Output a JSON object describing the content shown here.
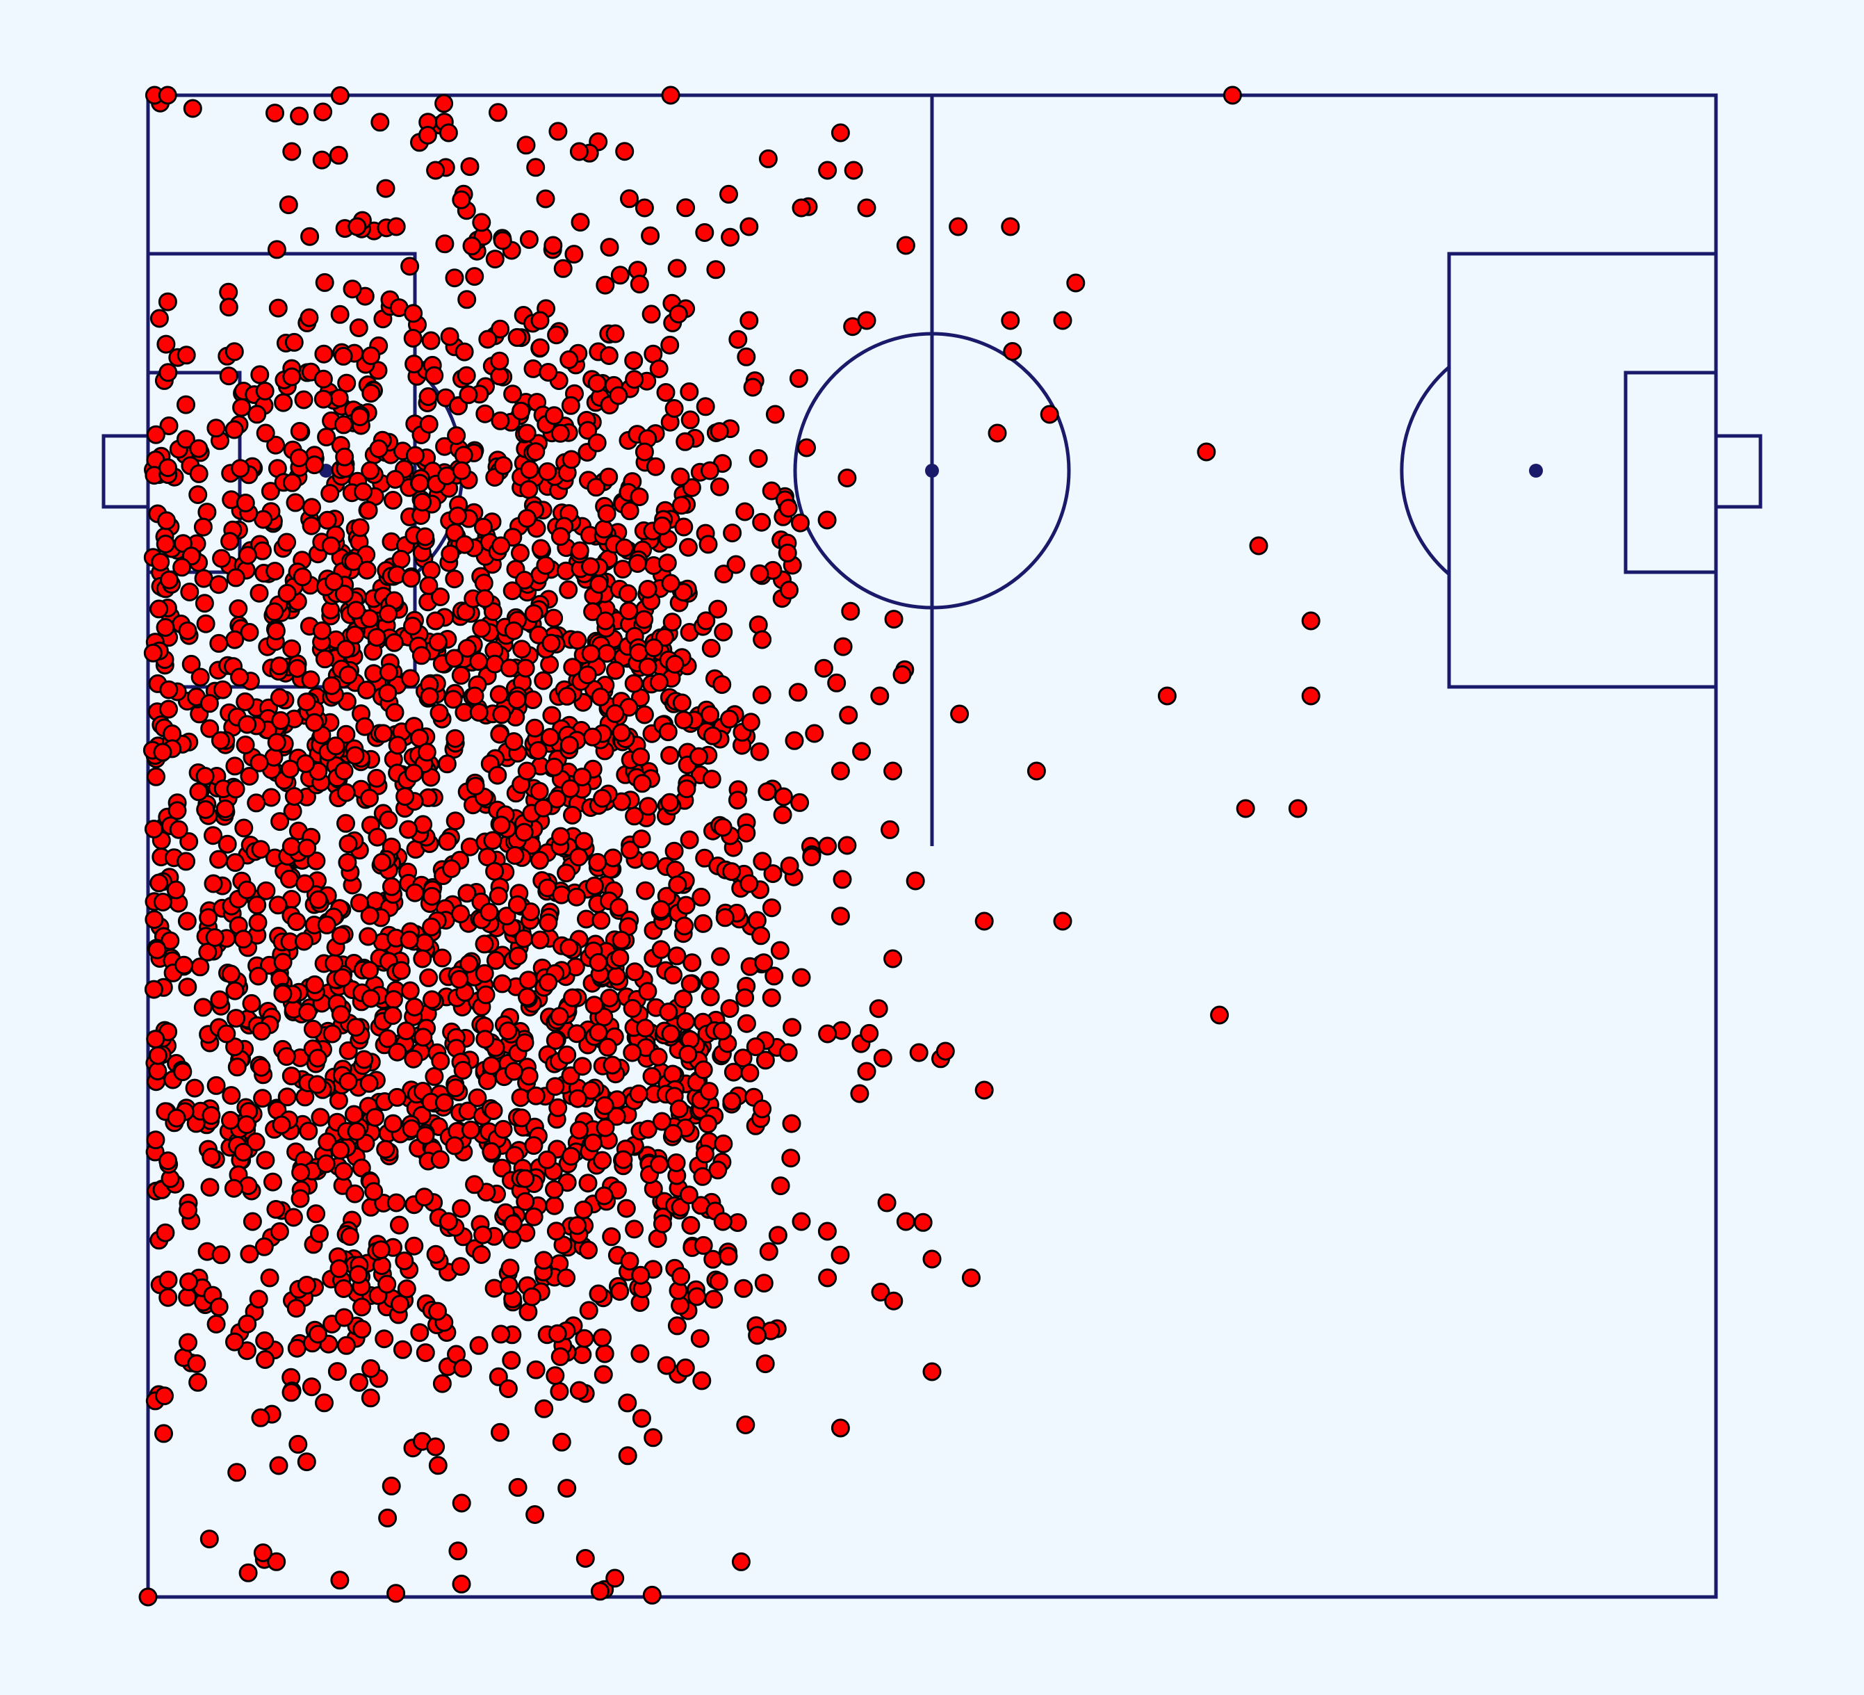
{
  "chart_data": {
    "type": "scatter",
    "title": "",
    "xlabel": "",
    "ylabel": "",
    "xlim": [
      0,
      120
    ],
    "ylim": [
      0,
      80
    ],
    "grid": false,
    "colors": {
      "background": "#f0f8ff",
      "pitch_lines": "#1a1a6b",
      "points": "#ff0000",
      "point_edge": "#000000"
    },
    "series": [
      {
        "marker": "circle",
        "cluster_centers": [
          [
            14,
            28
          ],
          [
            34,
            28
          ],
          [
            14,
            53
          ],
          [
            34,
            53
          ]
        ],
        "points": [
          [
            0,
            0
          ],
          [
            0.5,
            80
          ],
          [
            1.5,
            80
          ],
          [
            40,
            80
          ],
          [
            60,
            12
          ],
          [
            45,
            55
          ],
          [
            66,
            68
          ],
          [
            71,
            70
          ],
          [
            55,
            68
          ],
          [
            69,
            63
          ],
          [
            70,
            36
          ],
          [
            68,
            44
          ],
          [
            57,
            34
          ],
          [
            55,
            28
          ],
          [
            60,
            18
          ],
          [
            50,
            20
          ],
          [
            53,
            9
          ],
          [
            64,
            27
          ],
          [
            64,
            36
          ],
          [
            59,
            29
          ],
          [
            82,
            31
          ],
          [
            81,
            61
          ],
          [
            78,
            48
          ],
          [
            84,
            42
          ],
          [
            85,
            56
          ],
          [
            88,
            42
          ],
          [
            89,
            52
          ],
          [
            89,
            48
          ],
          [
            66,
            73
          ],
          [
            52,
            30
          ],
          [
            58,
            20
          ],
          [
            63,
            17
          ],
          [
            83,
            80
          ],
          [
            53,
            78
          ],
          [
            55,
            74
          ],
          [
            52,
            76
          ],
          [
            22,
            76
          ],
          [
            10,
            7
          ],
          [
            11,
            77
          ],
          [
            19,
            73
          ],
          [
            23,
            20
          ],
          [
            24,
            5
          ],
          [
            52,
            17
          ],
          [
            58,
            72
          ],
          [
            65,
            62
          ],
          [
            70,
            68
          ],
          [
            62,
            73
          ],
          [
            46,
            73
          ],
          [
            57,
            44
          ],
          [
            51,
            46
          ],
          [
            29,
            62
          ],
          [
            11,
            65
          ],
          [
            16,
            73
          ],
          [
            26,
            67
          ],
          [
            33,
            77
          ],
          [
            38,
            74
          ],
          [
            41,
            57
          ],
          [
            30,
            68
          ],
          [
            31,
            72
          ],
          [
            23,
            78
          ],
          [
            43,
            60
          ],
          [
            50,
            74
          ],
          [
            54,
            76
          ],
          [
            46,
            68
          ],
          [
            49,
            58
          ],
          [
            48,
            63
          ],
          [
            56,
            48
          ],
          [
            53,
            44
          ],
          [
            40,
            54
          ],
          [
            38,
            61
          ],
          [
            18,
            46
          ],
          [
            25,
            48
          ],
          [
            30,
            35
          ],
          [
            28,
            28
          ],
          [
            35,
            25
          ],
          [
            40,
            30
          ],
          [
            46,
            38
          ],
          [
            49,
            29
          ],
          [
            52,
            40
          ],
          [
            44,
            20
          ],
          [
            32,
            17
          ],
          [
            21,
            34
          ],
          [
            14,
            56
          ],
          [
            9,
            62
          ],
          [
            7,
            49
          ],
          [
            6,
            30
          ],
          [
            8,
            20
          ],
          [
            19,
            21
          ],
          [
            22,
            8
          ],
          [
            20,
            35
          ],
          [
            12,
            38
          ],
          [
            15,
            44
          ],
          [
            38,
            47
          ],
          [
            47,
            51
          ],
          [
            36,
            64
          ],
          [
            27,
            56
          ],
          [
            24,
            60
          ],
          [
            47,
            26
          ],
          [
            42,
            16
          ],
          [
            33,
            11
          ],
          [
            27,
            14
          ],
          [
            13,
            14
          ],
          [
            5,
            38
          ],
          [
            4,
            49
          ],
          [
            3,
            36
          ],
          [
            29,
            44
          ],
          [
            22,
            52
          ],
          [
            44,
            41
          ],
          [
            35,
            52
          ],
          [
            50,
            33
          ]
        ]
      }
    ]
  }
}
